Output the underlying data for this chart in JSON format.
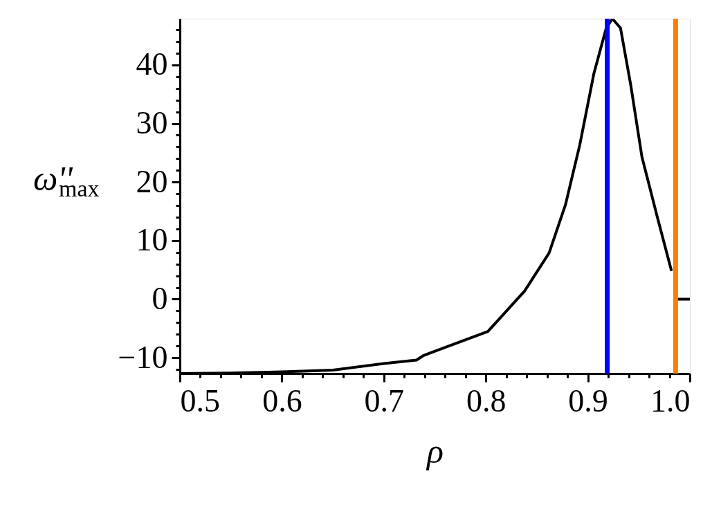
{
  "chart_data": {
    "type": "line",
    "xlabel": "ρ",
    "ylabel": "ω''$_{max}$",
    "x": [
      0.5,
      0.55,
      0.6,
      0.65,
      0.7,
      0.732,
      0.739,
      0.802,
      0.838,
      0.862,
      0.878,
      0.892,
      0.906,
      0.918,
      0.924,
      0.932,
      0.942,
      0.953,
      0.968,
      0.982,
      0.9865,
      0.987,
      1.0
    ],
    "series": [
      {
        "color": "#000000",
        "values": [
          -12.7,
          -12.6,
          -12.4,
          -12.1,
          -11.0,
          -10.4,
          -9.6,
          -5.5,
          1.4,
          7.9,
          16.1,
          26.3,
          38.6,
          46.3,
          47.9,
          46.3,
          36.6,
          24.3,
          14.1,
          4.8,
          null,
          0,
          0
        ]
      }
    ],
    "xlim": [
      0.5,
      1.0
    ],
    "ylim": [
      -12.7,
      47.9
    ],
    "xticks": [
      0.5,
      {
        "value": 0.52,
        "label": null
      },
      {
        "value": 0.54,
        "label": null
      },
      {
        "value": 0.56,
        "label": null
      },
      {
        "value": 0.58,
        "label": null
      },
      0.6,
      {
        "value": 0.62,
        "label": null
      },
      {
        "value": 0.64,
        "label": null
      },
      {
        "value": 0.66,
        "label": null
      },
      {
        "value": 0.68,
        "label": null
      },
      0.7,
      {
        "value": 0.72,
        "label": null
      },
      {
        "value": 0.74,
        "label": null
      },
      {
        "value": 0.76,
        "label": null
      },
      {
        "value": 0.78,
        "label": null
      },
      0.8,
      {
        "value": 0.82,
        "label": null
      },
      {
        "value": 0.84,
        "label": null
      },
      {
        "value": 0.86,
        "label": null
      },
      {
        "value": 0.88,
        "label": null
      },
      0.9,
      {
        "value": 0.92,
        "label": null
      },
      {
        "value": 0.94,
        "label": null
      },
      {
        "value": 0.96,
        "label": null
      },
      {
        "value": 0.98,
        "label": null
      },
      {
        "value": 1,
        "label": "1.0"
      }
    ],
    "yticks": [
      {
        "value": -12,
        "label": null
      },
      {
        "value": -10,
        "label": "−10"
      },
      {
        "value": -8,
        "label": null
      },
      {
        "value": -6,
        "label": null
      },
      {
        "value": -4,
        "label": null
      },
      {
        "value": -2,
        "label": null
      },
      0,
      {
        "value": 2,
        "label": null
      },
      {
        "value": 4,
        "label": null
      },
      {
        "value": 6,
        "label": null
      },
      {
        "value": 8,
        "label": null
      },
      10,
      {
        "value": 12,
        "label": null
      },
      {
        "value": 14,
        "label": null
      },
      {
        "value": 16,
        "label": null
      },
      {
        "value": 18,
        "label": null
      },
      20,
      {
        "value": 22,
        "label": null
      },
      {
        "value": 24,
        "label": null
      },
      {
        "value": 26,
        "label": null
      },
      {
        "value": 28,
        "label": null
      },
      30,
      {
        "value": 32,
        "label": null
      },
      {
        "value": 34,
        "label": null
      },
      {
        "value": 36,
        "label": null
      },
      {
        "value": 38,
        "label": null
      },
      40,
      {
        "value": 42,
        "label": null
      },
      {
        "value": 44,
        "label": null
      },
      {
        "value": 46,
        "label": null
      }
    ],
    "ref_lines": [
      {
        "axis": "x",
        "value": 0.919,
        "color": "#0000ff"
      },
      {
        "axis": "x",
        "value": 0.986,
        "color": "#ff7f00"
      }
    ],
    "grid": false,
    "legend": false,
    "line_style": "solid",
    "marker": "none"
  }
}
